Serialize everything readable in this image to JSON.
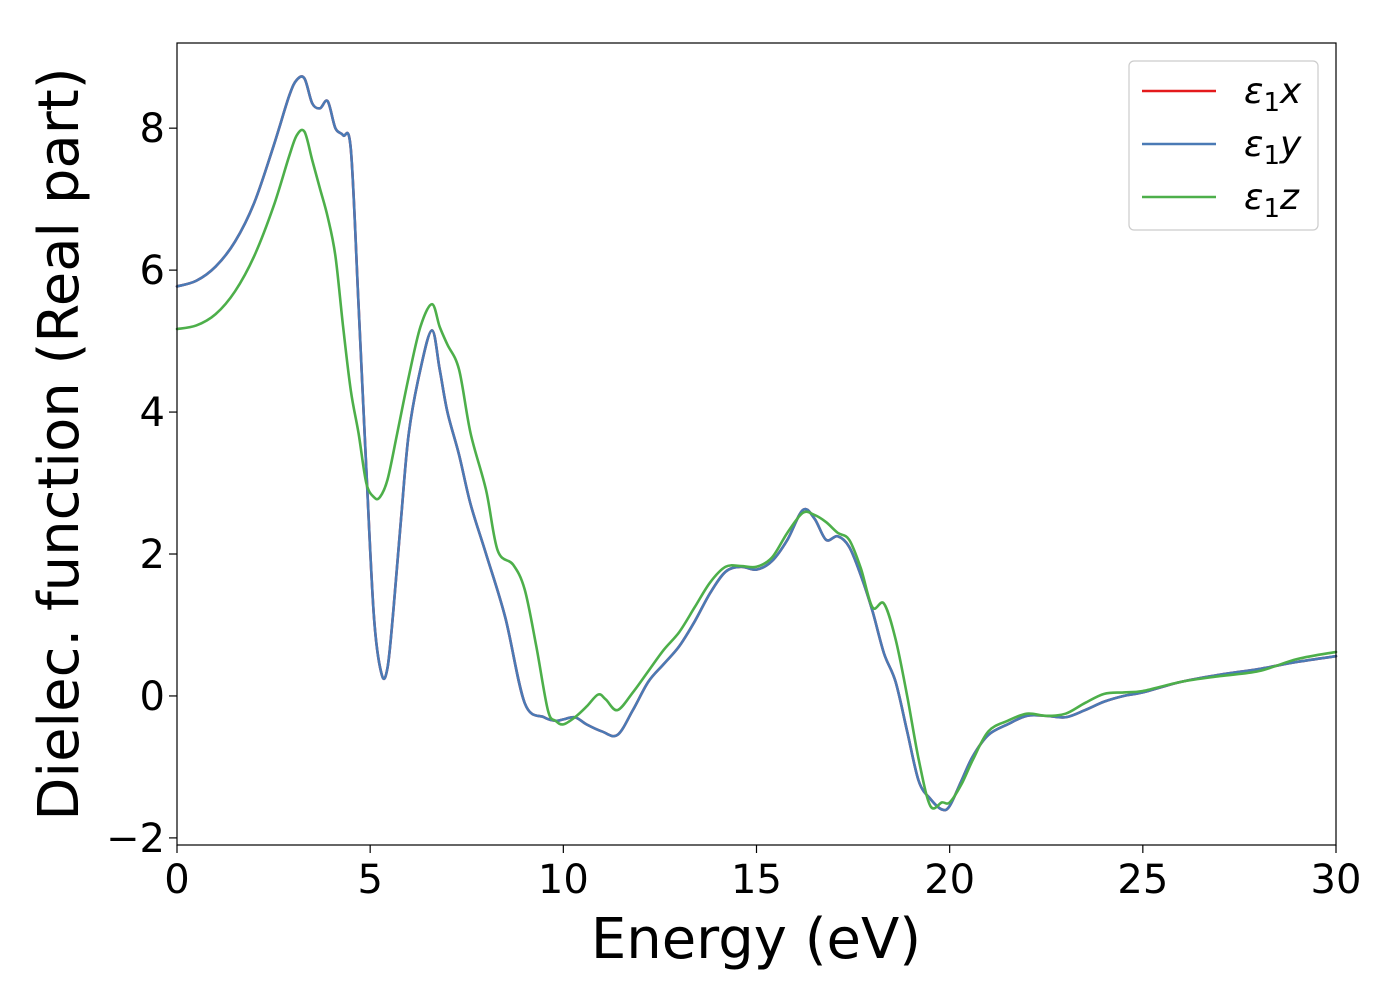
{
  "chart_data": {
    "type": "line",
    "title": "",
    "xlabel": "Energy (eV)",
    "ylabel": "Dielec. function (Real part)",
    "xlim": [
      0,
      30
    ],
    "ylim": [
      -2.1,
      9.2
    ],
    "xticks": [
      0,
      5,
      10,
      15,
      20,
      25,
      30
    ],
    "xtick_labels": [
      "0",
      "5",
      "10",
      "15",
      "20",
      "25",
      "30"
    ],
    "yticks": [
      -2,
      0,
      2,
      4,
      6,
      8
    ],
    "ytick_labels": [
      "−2",
      "0",
      "2",
      "4",
      "6",
      "8"
    ],
    "grid": false,
    "legend_position": "top-right",
    "series": [
      {
        "name": "ε₁x",
        "legend_main": "ε",
        "legend_sub": "1",
        "legend_var": "x",
        "color": "#e41a1c",
        "x": [
          0,
          0.5,
          1,
          1.5,
          2,
          2.5,
          2.9,
          3.1,
          3.3,
          3.5,
          3.7,
          3.9,
          4.1,
          4.3,
          4.5,
          4.7,
          4.9,
          5.1,
          5.3,
          5.45,
          5.6,
          5.8,
          6.0,
          6.3,
          6.6,
          6.8,
          7.0,
          7.3,
          7.6,
          8.0,
          8.5,
          9.0,
          9.5,
          9.8,
          10.0,
          10.3,
          10.6,
          11.0,
          11.4,
          11.8,
          12.2,
          12.6,
          13.0,
          13.4,
          13.8,
          14.2,
          14.6,
          15.0,
          15.4,
          15.8,
          16.2,
          16.5,
          16.8,
          17.1,
          17.4,
          17.7,
          18.0,
          18.3,
          18.6,
          18.9,
          19.2,
          19.5,
          19.8,
          20.0,
          20.3,
          20.6,
          21.0,
          21.5,
          22.0,
          22.5,
          23.0,
          23.5,
          24.0,
          24.5,
          25.0,
          26.0,
          27.0,
          28.0,
          29.0,
          30.0
        ],
        "y": [
          5.77,
          5.85,
          6.05,
          6.4,
          6.95,
          7.75,
          8.45,
          8.68,
          8.7,
          8.35,
          8.28,
          8.38,
          8.0,
          7.9,
          7.7,
          5.5,
          3.2,
          1.1,
          0.3,
          0.4,
          1.2,
          2.5,
          3.7,
          4.6,
          5.15,
          4.6,
          4.0,
          3.4,
          2.7,
          2.0,
          1.1,
          -0.1,
          -0.3,
          -0.35,
          -0.33,
          -0.3,
          -0.4,
          -0.5,
          -0.55,
          -0.2,
          0.2,
          0.45,
          0.7,
          1.05,
          1.45,
          1.75,
          1.82,
          1.78,
          1.9,
          2.2,
          2.62,
          2.5,
          2.2,
          2.25,
          2.1,
          1.7,
          1.2,
          0.6,
          0.2,
          -0.5,
          -1.2,
          -1.45,
          -1.6,
          -1.55,
          -1.2,
          -0.85,
          -0.55,
          -0.4,
          -0.28,
          -0.28,
          -0.3,
          -0.2,
          -0.08,
          0.0,
          0.05,
          0.2,
          0.3,
          0.38,
          0.48,
          0.56
        ]
      },
      {
        "name": "ε₁y",
        "legend_main": "ε",
        "legend_sub": "1",
        "legend_var": "y",
        "color": "#4a7ab5",
        "x": [
          0,
          0.5,
          1,
          1.5,
          2,
          2.5,
          2.9,
          3.1,
          3.3,
          3.5,
          3.7,
          3.9,
          4.1,
          4.3,
          4.5,
          4.7,
          4.9,
          5.1,
          5.3,
          5.45,
          5.6,
          5.8,
          6.0,
          6.3,
          6.6,
          6.8,
          7.0,
          7.3,
          7.6,
          8.0,
          8.5,
          9.0,
          9.5,
          9.8,
          10.0,
          10.3,
          10.6,
          11.0,
          11.4,
          11.8,
          12.2,
          12.6,
          13.0,
          13.4,
          13.8,
          14.2,
          14.6,
          15.0,
          15.4,
          15.8,
          16.2,
          16.5,
          16.8,
          17.1,
          17.4,
          17.7,
          18.0,
          18.3,
          18.6,
          18.9,
          19.2,
          19.5,
          19.8,
          20.0,
          20.3,
          20.6,
          21.0,
          21.5,
          22.0,
          22.5,
          23.0,
          23.5,
          24.0,
          24.5,
          25.0,
          26.0,
          27.0,
          28.0,
          29.0,
          30.0
        ],
        "y": [
          5.77,
          5.85,
          6.05,
          6.4,
          6.95,
          7.75,
          8.45,
          8.68,
          8.7,
          8.35,
          8.28,
          8.38,
          8.0,
          7.9,
          7.7,
          5.5,
          3.2,
          1.1,
          0.3,
          0.4,
          1.2,
          2.5,
          3.7,
          4.6,
          5.15,
          4.6,
          4.0,
          3.4,
          2.7,
          2.0,
          1.1,
          -0.1,
          -0.3,
          -0.35,
          -0.33,
          -0.3,
          -0.4,
          -0.5,
          -0.55,
          -0.2,
          0.2,
          0.45,
          0.7,
          1.05,
          1.45,
          1.75,
          1.82,
          1.78,
          1.9,
          2.2,
          2.62,
          2.5,
          2.2,
          2.25,
          2.1,
          1.7,
          1.2,
          0.6,
          0.2,
          -0.5,
          -1.2,
          -1.45,
          -1.6,
          -1.55,
          -1.2,
          -0.85,
          -0.55,
          -0.4,
          -0.28,
          -0.28,
          -0.3,
          -0.2,
          -0.08,
          0.0,
          0.05,
          0.2,
          0.3,
          0.38,
          0.48,
          0.56
        ]
      },
      {
        "name": "ε₁z",
        "legend_main": "ε",
        "legend_sub": "1",
        "legend_var": "z",
        "color": "#4daf4a",
        "x": [
          0,
          0.5,
          1,
          1.5,
          2,
          2.5,
          2.9,
          3.1,
          3.3,
          3.5,
          3.7,
          3.9,
          4.1,
          4.3,
          4.5,
          4.7,
          4.9,
          5.1,
          5.25,
          5.45,
          5.7,
          6.0,
          6.3,
          6.6,
          6.8,
          7.0,
          7.3,
          7.6,
          8.0,
          8.3,
          8.7,
          9.0,
          9.3,
          9.6,
          9.8,
          10.0,
          10.3,
          10.6,
          10.9,
          11.1,
          11.4,
          11.8,
          12.2,
          12.6,
          13.0,
          13.4,
          13.8,
          14.2,
          14.6,
          15.0,
          15.4,
          15.8,
          16.2,
          16.5,
          16.8,
          17.1,
          17.4,
          17.7,
          18.0,
          18.3,
          18.6,
          18.9,
          19.2,
          19.5,
          19.8,
          20.0,
          20.3,
          20.6,
          21.0,
          21.5,
          22.0,
          22.5,
          23.0,
          23.5,
          24.0,
          24.5,
          25.0,
          26.0,
          27.0,
          28.0,
          29.0,
          30.0
        ],
        "y": [
          5.17,
          5.22,
          5.38,
          5.7,
          6.2,
          6.9,
          7.6,
          7.9,
          7.95,
          7.55,
          7.15,
          6.75,
          6.2,
          5.2,
          4.3,
          3.7,
          3.0,
          2.8,
          2.8,
          3.05,
          3.7,
          4.5,
          5.2,
          5.52,
          5.2,
          4.95,
          4.6,
          3.7,
          2.9,
          2.05,
          1.85,
          1.5,
          0.7,
          -0.2,
          -0.35,
          -0.4,
          -0.3,
          -0.15,
          0.02,
          -0.05,
          -0.2,
          0.05,
          0.35,
          0.65,
          0.9,
          1.25,
          1.6,
          1.82,
          1.83,
          1.82,
          1.95,
          2.3,
          2.58,
          2.55,
          2.45,
          2.3,
          2.2,
          1.8,
          1.25,
          1.3,
          0.8,
          0.0,
          -0.9,
          -1.55,
          -1.5,
          -1.5,
          -1.25,
          -0.9,
          -0.5,
          -0.35,
          -0.25,
          -0.28,
          -0.25,
          -0.1,
          0.03,
          0.05,
          0.07,
          0.2,
          0.28,
          0.35,
          0.52,
          0.62
        ]
      }
    ]
  }
}
